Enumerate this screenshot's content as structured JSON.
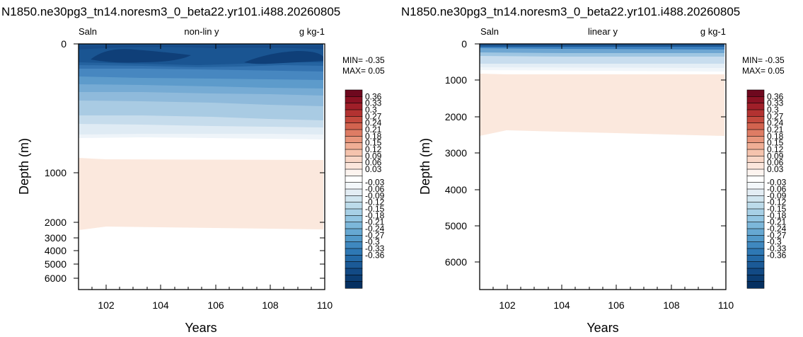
{
  "colors": {
    "palette": [
      "#053061",
      "#0b3d73",
      "#124a85",
      "#1b5a97",
      "#2369a6",
      "#2e78b4",
      "#3f88bf",
      "#5299c9",
      "#66a8d2",
      "#7cb7da",
      "#92c5e2",
      "#a7d0e6",
      "#bcdbea",
      "#d0e5ef",
      "#e3edf4",
      "#f3f7fa",
      "#ffffff",
      "#fdf4ef",
      "#fbe6dc",
      "#f8d6c6",
      "#f5c3ad",
      "#f0ae95",
      "#e8967c",
      "#de7c64",
      "#d2634f",
      "#c44a3e",
      "#b33231",
      "#a01f29",
      "#8b1223",
      "#6e081e"
    ],
    "labels": [
      "-0.36",
      "-0.33",
      "-0.3",
      "-0.27",
      "-0.24",
      "-0.21",
      "-0.18",
      "-0.15",
      "-0.12",
      "-0.09",
      "-0.06",
      "-0.03",
      "0.03",
      "0.06",
      "0.09",
      "0.12",
      "0.15",
      "0.18",
      "0.21",
      "0.24",
      "0.27",
      "0.3",
      "0.33",
      "0.36"
    ]
  },
  "chart_data": [
    {
      "type": "heatmap",
      "title": "N1850.ne30pg3_tn14.noresm3_0_beta22.yr101.i488.20260805",
      "left_label": "Saln",
      "center_label": "non-lin y",
      "right_label": "g kg-1",
      "xlabel": "Years",
      "ylabel": "Depth (m)",
      "x_ticks": [
        "102",
        "104",
        "106",
        "108",
        "110"
      ],
      "y_ticks": [
        "0",
        "1000",
        "2000",
        "3000",
        "4000",
        "5000",
        "6000"
      ],
      "y_scale": "non-linear (upper ~500 m expanded)",
      "xlim": [
        101,
        110
      ],
      "ylim": [
        6500,
        0
      ],
      "min_text": "MIN= -0.35",
      "max_text": "MAX=  0.05",
      "colorbar_ticks": [
        "0.36",
        "0.33",
        "0.3",
        "0.27",
        "0.24",
        "0.21",
        "0.18",
        "0.15",
        "0.12",
        "0.09",
        "0.06",
        "0.03",
        "-0.03",
        "-0.06",
        "-0.09",
        "-0.12",
        "-0.15",
        "-0.18",
        "-0.21",
        "-0.24",
        "-0.27",
        "-0.3",
        "-0.33",
        "-0.36"
      ],
      "bands": [
        {
          "level": "-0.36",
          "depth_m": "~20-100",
          "years": "102-104, 109-110"
        },
        {
          "level": "-0.33",
          "depth_m": "~10-120"
        },
        {
          "level": "-0.24 to -0.18",
          "depth_m": "~120-350"
        },
        {
          "level": "-0.15 to -0.09",
          "depth_m": "~350-600"
        },
        {
          "level": "-0.06 to -0.03",
          "depth_m": "~600-700"
        },
        {
          "level": "0.03 to 0.06",
          "depth_m": "~800-2500"
        }
      ]
    },
    {
      "type": "heatmap",
      "title": "N1850.ne30pg3_tn14.noresm3_0_beta22.yr101.i488.20260805",
      "left_label": "Saln",
      "center_label": "linear y",
      "right_label": "g kg-1",
      "xlabel": "Years",
      "ylabel": "Depth (m)",
      "x_ticks": [
        "102",
        "104",
        "106",
        "108",
        "110"
      ],
      "y_ticks": [
        "0",
        "1000",
        "2000",
        "3000",
        "4000",
        "5000",
        "6000"
      ],
      "y_scale": "linear",
      "xlim": [
        101,
        110
      ],
      "ylim": [
        6800,
        0
      ],
      "min_text": "MIN= -0.35",
      "max_text": "MAX=  0.05",
      "colorbar_ticks": [
        "0.36",
        "0.33",
        "0.3",
        "0.27",
        "0.24",
        "0.21",
        "0.18",
        "0.15",
        "0.12",
        "0.09",
        "0.06",
        "0.03",
        "-0.03",
        "-0.06",
        "-0.09",
        "-0.12",
        "-0.15",
        "-0.18",
        "-0.21",
        "-0.24",
        "-0.27",
        "-0.3",
        "-0.33",
        "-0.36"
      ],
      "bands": [
        {
          "level": "-0.36 to -0.03",
          "depth_m": "0-700"
        },
        {
          "level": "0.03 to 0.06",
          "depth_m": "~800-2500"
        }
      ]
    }
  ]
}
